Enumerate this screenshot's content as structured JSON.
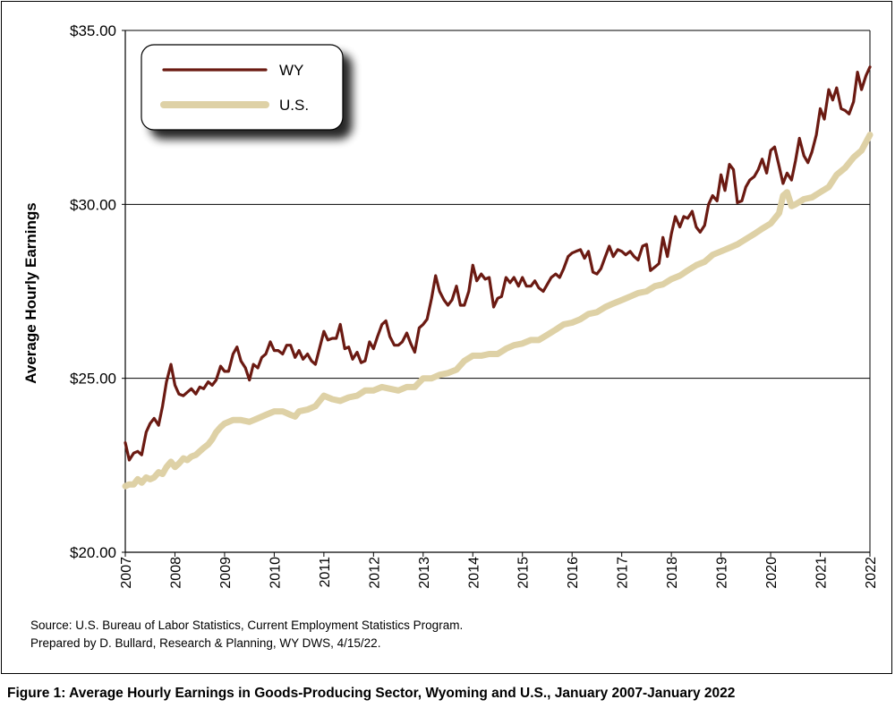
{
  "chart_data": {
    "type": "line",
    "ylabel": "Average Hourly Earnings",
    "xlabel": "",
    "ylim": [
      20,
      35
    ],
    "y_ticks": [
      "$20.00",
      "$25.00",
      "$30.00",
      "$35.00"
    ],
    "x_ticks": [
      "2007",
      "2008",
      "2009",
      "2010",
      "2011",
      "2012",
      "2013",
      "2014",
      "2015",
      "2016",
      "2017",
      "2018",
      "2019",
      "2020",
      "2021",
      "2022"
    ],
    "xlim": [
      2007,
      2022
    ],
    "grid": "horizontal major lines at $25 and $30",
    "legend_position": "top-left",
    "series": [
      {
        "name": "WY",
        "color": "#6b1a12",
        "points": [
          [
            2007.0,
            23.15
          ],
          [
            2007.08,
            22.65
          ],
          [
            2007.17,
            22.85
          ],
          [
            2007.25,
            22.9
          ],
          [
            2007.33,
            22.8
          ],
          [
            2007.42,
            23.45
          ],
          [
            2007.5,
            23.7
          ],
          [
            2007.58,
            23.85
          ],
          [
            2007.67,
            23.65
          ],
          [
            2007.75,
            24.2
          ],
          [
            2007.83,
            24.9
          ],
          [
            2007.92,
            25.4
          ],
          [
            2008.0,
            24.8
          ],
          [
            2008.08,
            24.55
          ],
          [
            2008.17,
            24.5
          ],
          [
            2008.25,
            24.6
          ],
          [
            2008.33,
            24.7
          ],
          [
            2008.42,
            24.55
          ],
          [
            2008.5,
            24.75
          ],
          [
            2008.58,
            24.7
          ],
          [
            2008.67,
            24.9
          ],
          [
            2008.75,
            24.8
          ],
          [
            2008.83,
            24.95
          ],
          [
            2008.92,
            25.35
          ],
          [
            2009.0,
            25.2
          ],
          [
            2009.08,
            25.2
          ],
          [
            2009.17,
            25.7
          ],
          [
            2009.25,
            25.9
          ],
          [
            2009.33,
            25.5
          ],
          [
            2009.42,
            25.3
          ],
          [
            2009.5,
            24.95
          ],
          [
            2009.58,
            25.4
          ],
          [
            2009.67,
            25.3
          ],
          [
            2009.75,
            25.6
          ],
          [
            2009.83,
            25.7
          ],
          [
            2009.92,
            26.05
          ],
          [
            2010.0,
            25.8
          ],
          [
            2010.08,
            25.8
          ],
          [
            2010.17,
            25.7
          ],
          [
            2010.25,
            25.95
          ],
          [
            2010.33,
            25.95
          ],
          [
            2010.42,
            25.6
          ],
          [
            2010.5,
            25.8
          ],
          [
            2010.58,
            25.55
          ],
          [
            2010.67,
            25.7
          ],
          [
            2010.75,
            25.5
          ],
          [
            2010.83,
            25.4
          ],
          [
            2010.92,
            25.9
          ],
          [
            2011.0,
            26.35
          ],
          [
            2011.08,
            26.1
          ],
          [
            2011.17,
            26.15
          ],
          [
            2011.25,
            26.15
          ],
          [
            2011.33,
            26.55
          ],
          [
            2011.42,
            25.85
          ],
          [
            2011.5,
            25.9
          ],
          [
            2011.58,
            25.55
          ],
          [
            2011.67,
            25.75
          ],
          [
            2011.75,
            25.45
          ],
          [
            2011.83,
            25.5
          ],
          [
            2011.92,
            26.05
          ],
          [
            2012.0,
            25.85
          ],
          [
            2012.08,
            26.2
          ],
          [
            2012.17,
            26.55
          ],
          [
            2012.25,
            26.65
          ],
          [
            2012.33,
            26.2
          ],
          [
            2012.42,
            25.95
          ],
          [
            2012.5,
            25.95
          ],
          [
            2012.58,
            26.05
          ],
          [
            2012.67,
            26.3
          ],
          [
            2012.75,
            26.0
          ],
          [
            2012.83,
            25.75
          ],
          [
            2012.92,
            26.45
          ],
          [
            2013.0,
            26.55
          ],
          [
            2013.08,
            26.7
          ],
          [
            2013.17,
            27.3
          ],
          [
            2013.25,
            27.95
          ],
          [
            2013.33,
            27.5
          ],
          [
            2013.42,
            27.25
          ],
          [
            2013.5,
            27.1
          ],
          [
            2013.58,
            27.25
          ],
          [
            2013.67,
            27.65
          ],
          [
            2013.75,
            27.1
          ],
          [
            2013.83,
            27.1
          ],
          [
            2013.92,
            27.5
          ],
          [
            2014.0,
            28.25
          ],
          [
            2014.08,
            27.8
          ],
          [
            2014.17,
            28.0
          ],
          [
            2014.25,
            27.85
          ],
          [
            2014.33,
            27.9
          ],
          [
            2014.42,
            27.05
          ],
          [
            2014.5,
            27.3
          ],
          [
            2014.58,
            27.35
          ],
          [
            2014.67,
            27.9
          ],
          [
            2014.75,
            27.75
          ],
          [
            2014.83,
            27.9
          ],
          [
            2014.92,
            27.65
          ],
          [
            2015.0,
            27.9
          ],
          [
            2015.08,
            27.65
          ],
          [
            2015.17,
            27.65
          ],
          [
            2015.25,
            27.8
          ],
          [
            2015.33,
            27.6
          ],
          [
            2015.42,
            27.5
          ],
          [
            2015.5,
            27.7
          ],
          [
            2015.58,
            27.9
          ],
          [
            2015.67,
            28.0
          ],
          [
            2015.75,
            27.9
          ],
          [
            2015.83,
            28.15
          ],
          [
            2015.92,
            28.5
          ],
          [
            2016.0,
            28.6
          ],
          [
            2016.08,
            28.65
          ],
          [
            2016.17,
            28.7
          ],
          [
            2016.25,
            28.45
          ],
          [
            2016.33,
            28.65
          ],
          [
            2016.42,
            28.05
          ],
          [
            2016.5,
            28.0
          ],
          [
            2016.58,
            28.15
          ],
          [
            2016.67,
            28.5
          ],
          [
            2016.75,
            28.8
          ],
          [
            2016.83,
            28.5
          ],
          [
            2016.92,
            28.7
          ],
          [
            2017.0,
            28.65
          ],
          [
            2017.08,
            28.55
          ],
          [
            2017.17,
            28.65
          ],
          [
            2017.25,
            28.5
          ],
          [
            2017.33,
            28.4
          ],
          [
            2017.42,
            28.8
          ],
          [
            2017.5,
            28.85
          ],
          [
            2017.58,
            28.1
          ],
          [
            2017.67,
            28.2
          ],
          [
            2017.75,
            28.3
          ],
          [
            2017.83,
            29.05
          ],
          [
            2017.92,
            28.5
          ],
          [
            2018.0,
            29.15
          ],
          [
            2018.08,
            29.65
          ],
          [
            2018.17,
            29.35
          ],
          [
            2018.25,
            29.65
          ],
          [
            2018.33,
            29.6
          ],
          [
            2018.42,
            29.8
          ],
          [
            2018.5,
            29.35
          ],
          [
            2018.58,
            29.2
          ],
          [
            2018.67,
            29.4
          ],
          [
            2018.75,
            30.0
          ],
          [
            2018.83,
            30.25
          ],
          [
            2018.92,
            30.1
          ],
          [
            2019.0,
            30.85
          ],
          [
            2019.08,
            30.4
          ],
          [
            2019.17,
            31.15
          ],
          [
            2019.25,
            31.0
          ],
          [
            2019.33,
            30.05
          ],
          [
            2019.42,
            30.1
          ],
          [
            2019.5,
            30.5
          ],
          [
            2019.58,
            30.7
          ],
          [
            2019.67,
            30.8
          ],
          [
            2019.75,
            31.0
          ],
          [
            2019.83,
            31.3
          ],
          [
            2019.92,
            30.9
          ],
          [
            2020.0,
            31.55
          ],
          [
            2020.08,
            31.65
          ],
          [
            2020.17,
            31.1
          ],
          [
            2020.25,
            30.6
          ],
          [
            2020.33,
            30.9
          ],
          [
            2020.42,
            30.7
          ],
          [
            2020.5,
            31.25
          ],
          [
            2020.58,
            31.9
          ],
          [
            2020.67,
            31.4
          ],
          [
            2020.75,
            31.2
          ],
          [
            2020.83,
            31.5
          ],
          [
            2020.92,
            32.0
          ],
          [
            2021.0,
            32.75
          ],
          [
            2021.08,
            32.45
          ],
          [
            2021.17,
            33.3
          ],
          [
            2021.25,
            33.0
          ],
          [
            2021.33,
            33.35
          ],
          [
            2021.42,
            32.75
          ],
          [
            2021.5,
            32.7
          ],
          [
            2021.58,
            32.6
          ],
          [
            2021.67,
            32.95
          ],
          [
            2021.75,
            33.8
          ],
          [
            2021.83,
            33.3
          ],
          [
            2021.92,
            33.7
          ],
          [
            2022.0,
            33.95
          ]
        ]
      },
      {
        "name": "U.S.",
        "color": "#ded1a6",
        "points": [
          [
            2007.0,
            21.9
          ],
          [
            2007.08,
            21.95
          ],
          [
            2007.17,
            21.95
          ],
          [
            2007.25,
            22.1
          ],
          [
            2007.33,
            22.0
          ],
          [
            2007.42,
            22.15
          ],
          [
            2007.5,
            22.1
          ],
          [
            2007.58,
            22.15
          ],
          [
            2007.67,
            22.3
          ],
          [
            2007.75,
            22.25
          ],
          [
            2007.83,
            22.45
          ],
          [
            2007.92,
            22.6
          ],
          [
            2008.0,
            22.45
          ],
          [
            2008.08,
            22.55
          ],
          [
            2008.17,
            22.7
          ],
          [
            2008.25,
            22.65
          ],
          [
            2008.33,
            22.75
          ],
          [
            2008.42,
            22.8
          ],
          [
            2008.5,
            22.9
          ],
          [
            2008.58,
            23.0
          ],
          [
            2008.67,
            23.1
          ],
          [
            2008.75,
            23.25
          ],
          [
            2008.83,
            23.45
          ],
          [
            2008.92,
            23.6
          ],
          [
            2009.0,
            23.7
          ],
          [
            2009.17,
            23.8
          ],
          [
            2009.33,
            23.8
          ],
          [
            2009.5,
            23.75
          ],
          [
            2009.67,
            23.85
          ],
          [
            2009.83,
            23.95
          ],
          [
            2010.0,
            24.05
          ],
          [
            2010.17,
            24.05
          ],
          [
            2010.33,
            23.95
          ],
          [
            2010.42,
            23.9
          ],
          [
            2010.5,
            24.05
          ],
          [
            2010.67,
            24.1
          ],
          [
            2010.83,
            24.2
          ],
          [
            2011.0,
            24.5
          ],
          [
            2011.17,
            24.4
          ],
          [
            2011.33,
            24.35
          ],
          [
            2011.5,
            24.45
          ],
          [
            2011.67,
            24.5
          ],
          [
            2011.83,
            24.65
          ],
          [
            2012.0,
            24.65
          ],
          [
            2012.17,
            24.75
          ],
          [
            2012.33,
            24.7
          ],
          [
            2012.5,
            24.65
          ],
          [
            2012.67,
            24.75
          ],
          [
            2012.83,
            24.75
          ],
          [
            2013.0,
            25.0
          ],
          [
            2013.17,
            25.0
          ],
          [
            2013.33,
            25.1
          ],
          [
            2013.5,
            25.15
          ],
          [
            2013.67,
            25.25
          ],
          [
            2013.83,
            25.5
          ],
          [
            2014.0,
            25.65
          ],
          [
            2014.17,
            25.65
          ],
          [
            2014.33,
            25.7
          ],
          [
            2014.5,
            25.7
          ],
          [
            2014.67,
            25.85
          ],
          [
            2014.83,
            25.95
          ],
          [
            2015.0,
            26.0
          ],
          [
            2015.17,
            26.1
          ],
          [
            2015.33,
            26.1
          ],
          [
            2015.5,
            26.25
          ],
          [
            2015.67,
            26.4
          ],
          [
            2015.83,
            26.55
          ],
          [
            2016.0,
            26.6
          ],
          [
            2016.17,
            26.7
          ],
          [
            2016.33,
            26.85
          ],
          [
            2016.5,
            26.9
          ],
          [
            2016.67,
            27.05
          ],
          [
            2016.83,
            27.15
          ],
          [
            2017.0,
            27.25
          ],
          [
            2017.17,
            27.35
          ],
          [
            2017.33,
            27.45
          ],
          [
            2017.5,
            27.5
          ],
          [
            2017.67,
            27.65
          ],
          [
            2017.83,
            27.7
          ],
          [
            2018.0,
            27.85
          ],
          [
            2018.17,
            27.95
          ],
          [
            2018.33,
            28.1
          ],
          [
            2018.5,
            28.25
          ],
          [
            2018.67,
            28.35
          ],
          [
            2018.83,
            28.55
          ],
          [
            2019.0,
            28.65
          ],
          [
            2019.17,
            28.75
          ],
          [
            2019.33,
            28.85
          ],
          [
            2019.5,
            29.0
          ],
          [
            2019.67,
            29.15
          ],
          [
            2019.83,
            29.3
          ],
          [
            2020.0,
            29.45
          ],
          [
            2020.17,
            29.75
          ],
          [
            2020.25,
            30.25
          ],
          [
            2020.33,
            30.35
          ],
          [
            2020.42,
            29.95
          ],
          [
            2020.5,
            30.0
          ],
          [
            2020.67,
            30.15
          ],
          [
            2020.83,
            30.2
          ],
          [
            2021.0,
            30.35
          ],
          [
            2021.17,
            30.5
          ],
          [
            2021.33,
            30.85
          ],
          [
            2021.5,
            31.05
          ],
          [
            2021.67,
            31.35
          ],
          [
            2021.83,
            31.55
          ],
          [
            2022.0,
            32.0
          ]
        ]
      }
    ]
  },
  "source_line1": "Source: U.S. Bureau of Labor Statistics, Current Employment Statistics Program.",
  "source_line2": "Prepared by D. Bullard, Research & Planning, WY DWS, 4/15/22.",
  "caption": "Figure 1: Average Hourly Earnings in Goods-Producing Sector, Wyoming and U.S., January 2007-January 2022"
}
